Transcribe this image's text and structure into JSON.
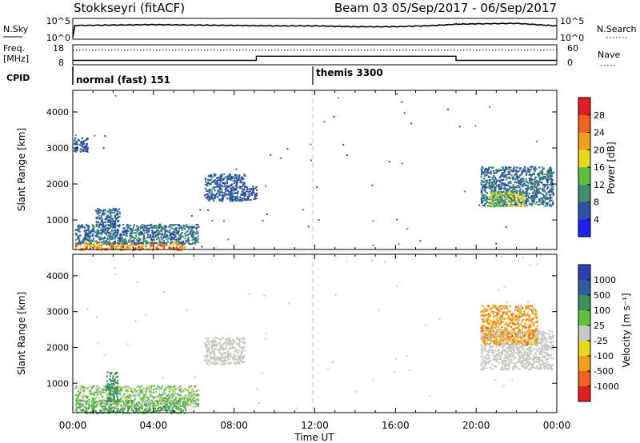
{
  "header": {
    "station": "Stokkseyri (fitACF)",
    "beam_info": "Beam 03  05/Sep/2017 - 06/Sep/2017"
  },
  "panels": {
    "nsky": {
      "left_label": "N.Sky",
      "right_label": "N.Search",
      "left_ticks": [
        "10^5",
        "10^0"
      ],
      "right_ticks": [
        "10^5",
        "10^0"
      ]
    },
    "freq": {
      "left_label_1": "Freq.",
      "left_label_2": "[MHz]",
      "right_label": "Nave",
      "left_ticks": [
        "18",
        "8"
      ],
      "right_ticks": [
        "60",
        "0"
      ]
    },
    "cpid": {
      "label": "CPID",
      "modes": [
        {
          "name": "normal (fast) 151",
          "start_hour": 0
        },
        {
          "name": "themis 3300",
          "start_hour": 12
        }
      ]
    }
  },
  "axes": {
    "xlabel": "Time UT",
    "xticks": [
      "00:00",
      "04:00",
      "08:00",
      "12:00",
      "16:00",
      "20:00",
      "00:00"
    ],
    "ylabel": "Slant Range [km]",
    "yticks": [
      "1000",
      "2000",
      "3000",
      "4000"
    ]
  },
  "colorbars": {
    "power": {
      "label": "Power [dB]",
      "ticks": [
        "4",
        "8",
        "12",
        "16",
        "20",
        "24",
        "28"
      ],
      "colors": [
        "#1f1fef",
        "#2f4fa8",
        "#3f8f6f",
        "#5fbf3f",
        "#e8d81f",
        "#f0a020",
        "#f06020",
        "#e02020"
      ]
    },
    "velocity": {
      "label": "Velocity [m s⁻¹]",
      "ticks": [
        "1000",
        "500",
        "100",
        "25",
        "-25",
        "-100",
        "-500",
        "-1000"
      ],
      "colors": [
        "#2f3fb0",
        "#2f5fa0",
        "#3f8f5f",
        "#5fbf3f",
        "#c8c8c4",
        "#e8d81f",
        "#f0a020",
        "#f06020",
        "#e02020"
      ]
    }
  },
  "chart_data": [
    {
      "type": "line",
      "name": "nsky",
      "x_unit": "hours UT",
      "x_range": [
        0,
        24
      ],
      "ylim_log10": [
        0,
        5
      ],
      "series": [
        {
          "name": "N.Sky",
          "x": [
            0,
            0.1,
            2,
            4,
            6,
            8,
            10,
            12,
            14,
            16,
            18,
            19,
            20,
            22,
            24
          ],
          "log10_values": [
            0.5,
            3.3,
            3.4,
            3.5,
            3.4,
            3.3,
            3.2,
            3.2,
            3.0,
            3.0,
            3.3,
            3.6,
            3.7,
            3.8,
            3.2
          ]
        }
      ]
    },
    {
      "type": "line",
      "name": "freq_nave",
      "x_unit": "hours UT",
      "x_range": [
        0,
        24
      ],
      "ylim_freq": [
        8,
        18
      ],
      "ylim_nave": [
        0,
        60
      ],
      "series": [
        {
          "name": "Freq.",
          "x": [
            0,
            9.1,
            9.1,
            19.0,
            19.0,
            24
          ],
          "values": [
            10.2,
            10.2,
            12.3,
            12.3,
            10.2,
            10.2
          ]
        },
        {
          "name": "Nave",
          "x": [
            0,
            24
          ],
          "values": [
            44,
            44
          ]
        }
      ]
    },
    {
      "type": "heatmap",
      "name": "power",
      "x_unit": "hours UT",
      "x_range": [
        0,
        24
      ],
      "ylim": [
        180,
        4600
      ],
      "units": "dB",
      "regions": [
        {
          "t0": 0.1,
          "t1": 5.6,
          "r0": 180,
          "r1": 420,
          "vmin": 16,
          "vmax": 30
        },
        {
          "t0": 0.1,
          "t1": 6.2,
          "r0": 350,
          "r1": 900,
          "vmin": 4,
          "vmax": 12
        },
        {
          "t0": 1.1,
          "t1": 2.3,
          "r0": 850,
          "r1": 1350,
          "vmin": 4,
          "vmax": 9
        },
        {
          "t0": 6.5,
          "t1": 8.5,
          "r0": 1550,
          "r1": 2300,
          "vmin": 4,
          "vmax": 9
        },
        {
          "t0": 8.4,
          "t1": 9.1,
          "r0": 1550,
          "r1": 1950,
          "vmin": 4,
          "vmax": 8
        },
        {
          "t0": 20.2,
          "t1": 23.8,
          "r0": 1400,
          "r1": 2500,
          "vmin": 4,
          "vmax": 12
        },
        {
          "t0": 20.6,
          "t1": 22.4,
          "r0": 1400,
          "r1": 1800,
          "vmin": 10,
          "vmax": 20
        },
        {
          "t0": 0.0,
          "t1": 0.7,
          "r0": 2900,
          "r1": 3300,
          "vmin": 4,
          "vmax": 8
        }
      ]
    },
    {
      "type": "heatmap",
      "name": "velocity",
      "x_unit": "hours UT",
      "x_range": [
        0,
        24
      ],
      "ylim": [
        180,
        4600
      ],
      "units": "m s-1",
      "regions": [
        {
          "t0": 0.1,
          "t1": 5.6,
          "r0": 180,
          "r1": 550,
          "vmin": 25,
          "vmax": 200
        },
        {
          "t0": 0.1,
          "t1": 6.2,
          "r0": 350,
          "r1": 950,
          "vmin": -30,
          "vmax": 100
        },
        {
          "t0": 1.6,
          "t1": 2.2,
          "r0": 500,
          "r1": 1350,
          "vmin": 100,
          "vmax": 500
        },
        {
          "t0": 6.5,
          "t1": 8.5,
          "r0": 1550,
          "r1": 2300,
          "vmin": -25,
          "vmax": 25
        },
        {
          "t0": 20.2,
          "t1": 23.8,
          "r0": 1400,
          "r1": 2500,
          "vmin": -25,
          "vmax": 25
        },
        {
          "t0": 20.2,
          "t1": 23.0,
          "r0": 2100,
          "r1": 3200,
          "vmin": -600,
          "vmax": 30
        }
      ]
    }
  ]
}
